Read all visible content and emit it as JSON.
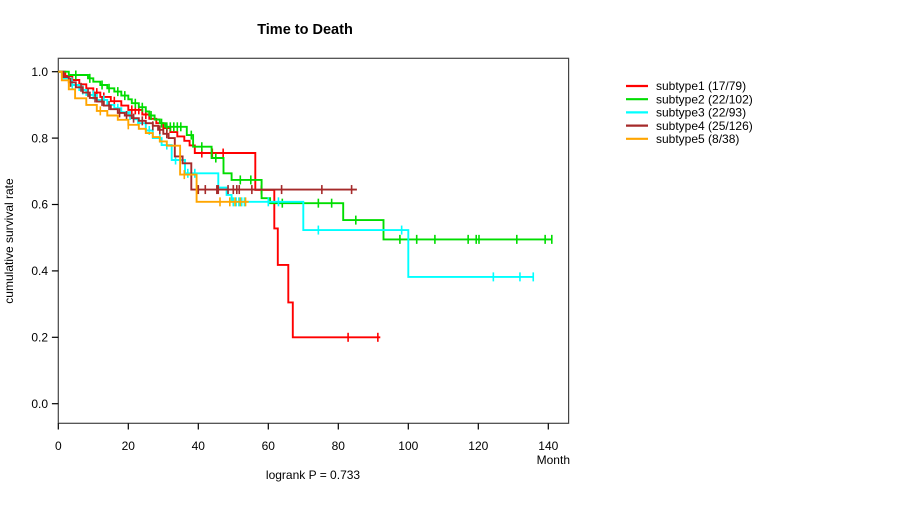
{
  "title": "Time to Death",
  "footer": "logrank P = 0.733",
  "axes": {
    "x_label": "Month",
    "y_label": "cumulative survival rate",
    "x_ticks": [
      0,
      20,
      40,
      60,
      80,
      100,
      120,
      140
    ],
    "y_ticks": [
      0.0,
      0.2,
      0.4,
      0.6,
      0.8,
      1.0
    ]
  },
  "legend": {
    "position": "right",
    "items": [
      {
        "label": "subtype1 (17/79)",
        "color": "#FF0000"
      },
      {
        "label": "subtype2 (22/102)",
        "color": "#00DD00"
      },
      {
        "label": "subtype3 (22/93)",
        "color": "#00FFFF"
      },
      {
        "label": "subtype4 (25/126)",
        "color": "#A52A2A"
      },
      {
        "label": "subtype5 (8/38)",
        "color": "#FFA500"
      }
    ]
  },
  "chart_data": {
    "type": "line",
    "variant": "kaplan-meier-step",
    "title": "Time to Death",
    "xlabel": "Month",
    "ylabel": "cumulative survival rate",
    "xlim": [
      0,
      145.8
    ],
    "ylim": [
      -0.06,
      1.04
    ],
    "grid": false,
    "legend_position": "right",
    "frame_color": "#444444",
    "series": [
      {
        "name": "subtype1",
        "label": "subtype1 (17/79)",
        "color": "#FF0000",
        "steps": [
          [
            0,
            1.0
          ],
          [
            2,
            0.987
          ],
          [
            4,
            0.975
          ],
          [
            6,
            0.962
          ],
          [
            8,
            0.95
          ],
          [
            10,
            0.937
          ],
          [
            12,
            0.924
          ],
          [
            15,
            0.911
          ],
          [
            18,
            0.898
          ],
          [
            20,
            0.885
          ],
          [
            24,
            0.871
          ],
          [
            26,
            0.858
          ],
          [
            28,
            0.845
          ],
          [
            30,
            0.83
          ],
          [
            32,
            0.818
          ],
          [
            34,
            0.805
          ],
          [
            36,
            0.792
          ],
          [
            37.5,
            0.778
          ],
          [
            39,
            0.755
          ],
          [
            56.3,
            0.644
          ],
          [
            61.7,
            0.528
          ],
          [
            62.7,
            0.418
          ],
          [
            65.7,
            0.305
          ],
          [
            67,
            0.2
          ]
        ],
        "end": 92,
        "censors": [
          11,
          13,
          16,
          21,
          22,
          23,
          25,
          31,
          41,
          44,
          47.1,
          58,
          82.8,
          91.3
        ]
      },
      {
        "name": "subtype2",
        "label": "subtype2 (22/102)",
        "color": "#00DD00",
        "steps": [
          [
            0,
            1.0
          ],
          [
            3,
            0.99
          ],
          [
            8.5,
            0.98
          ],
          [
            10,
            0.97
          ],
          [
            12,
            0.96
          ],
          [
            14,
            0.95
          ],
          [
            16,
            0.94
          ],
          [
            18,
            0.928
          ],
          [
            20,
            0.917
          ],
          [
            21,
            0.905
          ],
          [
            23,
            0.893
          ],
          [
            25,
            0.88
          ],
          [
            26,
            0.868
          ],
          [
            27.5,
            0.856
          ],
          [
            29,
            0.845
          ],
          [
            30.5,
            0.834
          ],
          [
            36.7,
            0.809
          ],
          [
            38.5,
            0.774
          ],
          [
            43.8,
            0.74
          ],
          [
            47.2,
            0.694
          ],
          [
            49.5,
            0.674
          ],
          [
            58.1,
            0.619
          ],
          [
            60.5,
            0.604
          ],
          [
            81.4,
            0.553
          ],
          [
            92.9,
            0.495
          ]
        ],
        "end": 141,
        "censors": [
          5,
          9,
          12.5,
          14.5,
          17,
          19,
          22,
          24,
          26.5,
          29.5,
          31,
          32,
          33,
          34,
          35,
          38,
          41,
          45,
          52,
          55,
          64,
          74.3,
          78.1,
          85,
          97.6,
          102.4,
          107.6,
          117.1,
          119.4,
          120.2,
          131,
          139.1,
          141
        ]
      },
      {
        "name": "subtype3",
        "label": "subtype3 (22/93)",
        "color": "#00FFFF",
        "steps": [
          [
            0,
            1.0
          ],
          [
            1.5,
            0.98
          ],
          [
            3.8,
            0.96
          ],
          [
            6,
            0.945
          ],
          [
            8,
            0.93
          ],
          [
            11,
            0.915
          ],
          [
            14,
            0.9
          ],
          [
            16,
            0.89
          ],
          [
            18,
            0.878
          ],
          [
            20,
            0.868
          ],
          [
            21.5,
            0.857
          ],
          [
            22.8,
            0.845
          ],
          [
            25,
            0.823
          ],
          [
            27,
            0.8
          ],
          [
            29.5,
            0.779
          ],
          [
            32.4,
            0.734
          ],
          [
            36.2,
            0.694
          ],
          [
            45.7,
            0.651
          ],
          [
            48.1,
            0.629
          ],
          [
            49.5,
            0.608
          ],
          [
            70,
            0.523
          ],
          [
            100,
            0.382
          ]
        ],
        "end": 135.7,
        "censors": [
          4,
          7,
          10,
          13,
          17,
          20.5,
          23,
          26,
          29,
          31,
          33.5,
          37,
          39,
          50,
          50.8,
          51.6,
          52.4,
          53.2,
          60,
          62.9,
          74.3,
          98.1,
          124.3,
          131.9,
          135.7
        ]
      },
      {
        "name": "subtype4",
        "label": "subtype4 (25/126)",
        "color": "#A52A2A",
        "steps": [
          [
            0,
            1.0
          ],
          [
            1.5,
            0.984
          ],
          [
            3,
            0.968
          ],
          [
            5,
            0.953
          ],
          [
            7,
            0.937
          ],
          [
            9,
            0.921
          ],
          [
            11,
            0.91
          ],
          [
            13,
            0.898
          ],
          [
            15,
            0.887
          ],
          [
            17,
            0.876
          ],
          [
            19,
            0.868
          ],
          [
            21,
            0.86
          ],
          [
            23,
            0.852
          ],
          [
            25,
            0.845
          ],
          [
            27,
            0.837
          ],
          [
            28.5,
            0.825
          ],
          [
            30,
            0.813
          ],
          [
            31.5,
            0.8
          ],
          [
            33.3,
            0.745
          ],
          [
            35.5,
            0.724
          ],
          [
            38,
            0.645
          ]
        ],
        "end": 85.3,
        "censors": [
          3.5,
          6.5,
          8.5,
          10.5,
          12.5,
          14.5,
          17.5,
          19.5,
          21.5,
          24,
          27,
          29,
          31,
          40,
          42,
          45.3,
          45.7,
          48.5,
          50,
          51,
          51.7,
          55.3,
          63.8,
          75.3,
          83.8
        ]
      },
      {
        "name": "subtype5",
        "label": "subtype5 (8/38)",
        "color": "#FFA500",
        "steps": [
          [
            0,
            1.0
          ],
          [
            1,
            0.974
          ],
          [
            3,
            0.947
          ],
          [
            4.8,
            0.92
          ],
          [
            8,
            0.9
          ],
          [
            11,
            0.882
          ],
          [
            14,
            0.868
          ],
          [
            17,
            0.855
          ],
          [
            20,
            0.84
          ],
          [
            23,
            0.828
          ],
          [
            25,
            0.815
          ],
          [
            27,
            0.803
          ],
          [
            29,
            0.79
          ],
          [
            31,
            0.777
          ],
          [
            34.8,
            0.69
          ],
          [
            39.5,
            0.608
          ]
        ],
        "end": 54.4,
        "censors": [
          12,
          20,
          36,
          46.2,
          49,
          50.5,
          52,
          53.5
        ]
      }
    ]
  }
}
